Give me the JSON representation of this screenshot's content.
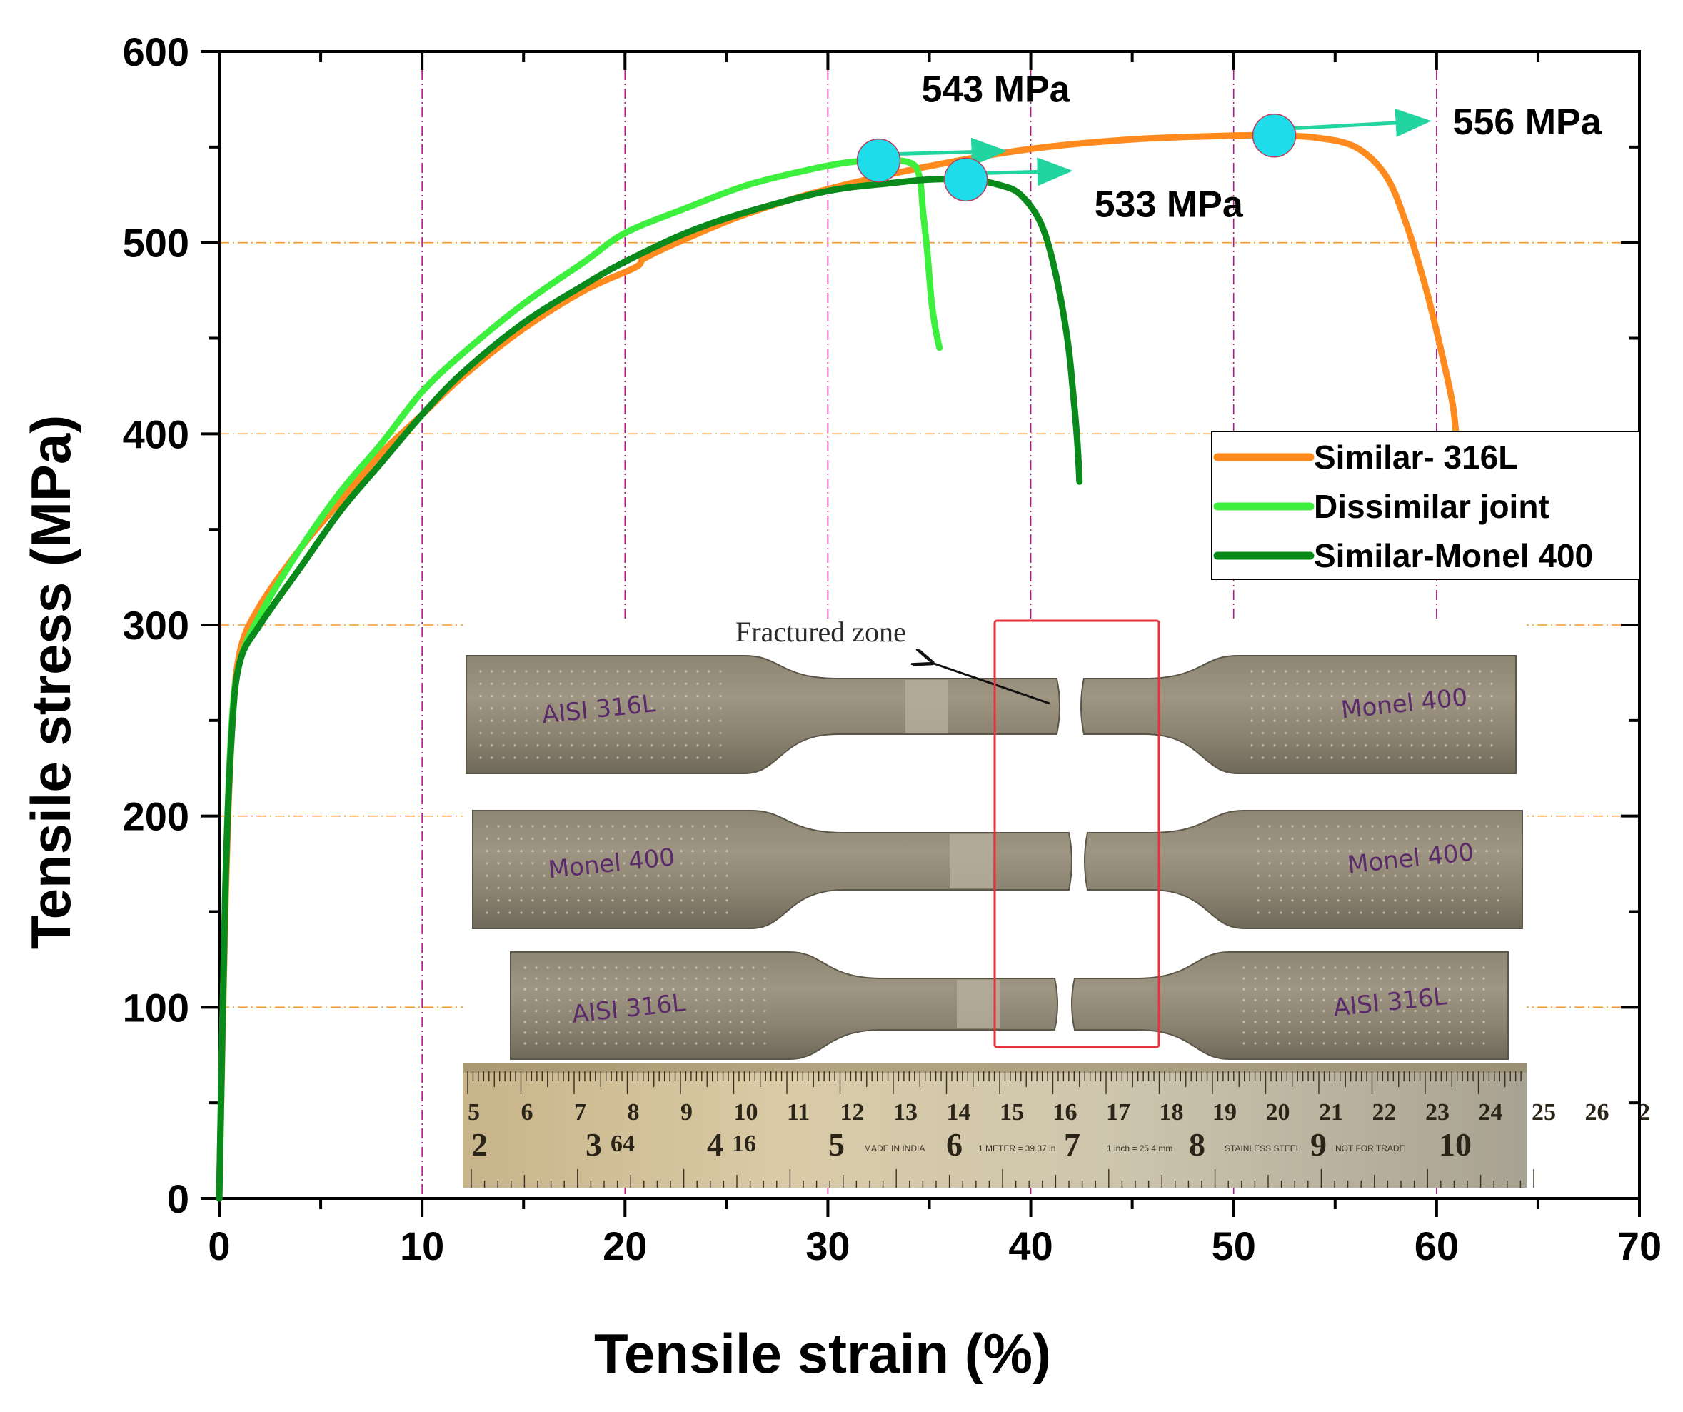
{
  "chart_data": {
    "type": "line",
    "title": "",
    "xlabel": "Tensile strain (%)",
    "ylabel": "Tensile stress (MPa)",
    "xlim": [
      0,
      70
    ],
    "ylim": [
      0,
      600
    ],
    "x_ticks": [
      0,
      10,
      20,
      30,
      40,
      50,
      60,
      70
    ],
    "y_ticks": [
      0,
      100,
      200,
      300,
      400,
      500,
      600
    ],
    "grid": "dashed vertical and horizontal lines",
    "legend_position": "right-middle",
    "series": [
      {
        "name": "Similar- 316L",
        "color": "#ff8a1e",
        "points": [
          [
            0,
            0
          ],
          [
            0.3,
            150
          ],
          [
            0.6,
            240
          ],
          [
            1,
            285
          ],
          [
            2,
            310
          ],
          [
            4,
            340
          ],
          [
            6,
            365
          ],
          [
            8,
            390
          ],
          [
            10,
            410
          ],
          [
            12,
            430
          ],
          [
            15,
            455
          ],
          [
            18,
            475
          ],
          [
            20.5,
            487
          ],
          [
            21,
            492
          ],
          [
            23,
            502
          ],
          [
            26,
            515
          ],
          [
            30,
            528
          ],
          [
            35,
            540
          ],
          [
            40,
            549
          ],
          [
            45,
            554
          ],
          [
            50,
            556
          ],
          [
            52,
            556
          ],
          [
            54,
            555
          ],
          [
            56,
            550
          ],
          [
            57.5,
            535
          ],
          [
            58.5,
            510
          ],
          [
            59.5,
            475
          ],
          [
            60.3,
            440
          ],
          [
            60.8,
            415
          ],
          [
            61,
            395
          ]
        ]
      },
      {
        "name": "Dissimilar joint",
        "color": "#3ef03e",
        "points": [
          [
            0,
            0
          ],
          [
            0.3,
            160
          ],
          [
            0.6,
            245
          ],
          [
            1,
            280
          ],
          [
            2,
            305
          ],
          [
            4,
            340
          ],
          [
            6,
            370
          ],
          [
            8,
            395
          ],
          [
            10,
            422
          ],
          [
            12,
            442
          ],
          [
            15,
            468
          ],
          [
            18,
            490
          ],
          [
            20,
            505
          ],
          [
            23,
            518
          ],
          [
            26,
            530
          ],
          [
            29,
            538
          ],
          [
            31,
            542
          ],
          [
            32.5,
            543
          ],
          [
            34,
            542
          ],
          [
            34.5,
            535
          ],
          [
            34.7,
            515
          ],
          [
            34.9,
            495
          ],
          [
            35.1,
            470
          ],
          [
            35.3,
            455
          ],
          [
            35.5,
            445
          ]
        ]
      },
      {
        "name": "Similar-Monel 400",
        "color": "#0a8a1a",
        "points": [
          [
            0,
            0
          ],
          [
            0.3,
            160
          ],
          [
            0.6,
            240
          ],
          [
            1,
            280
          ],
          [
            2,
            300
          ],
          [
            4,
            330
          ],
          [
            6,
            360
          ],
          [
            8,
            385
          ],
          [
            10,
            410
          ],
          [
            12,
            432
          ],
          [
            15,
            458
          ],
          [
            18,
            478
          ],
          [
            20,
            490
          ],
          [
            23,
            505
          ],
          [
            26,
            516
          ],
          [
            30,
            527
          ],
          [
            33,
            531
          ],
          [
            35,
            533
          ],
          [
            37,
            533
          ],
          [
            38.5,
            530
          ],
          [
            39.5,
            525
          ],
          [
            40.5,
            510
          ],
          [
            41.2,
            485
          ],
          [
            41.8,
            450
          ],
          [
            42.1,
            420
          ],
          [
            42.3,
            395
          ],
          [
            42.4,
            375
          ]
        ]
      }
    ],
    "annotations": [
      {
        "label": "543 MPa",
        "x": 32.5,
        "y": 543
      },
      {
        "label": "533 MPa",
        "x": 36.8,
        "y": 533
      },
      {
        "label": "556 MPa",
        "x": 52.0,
        "y": 556
      }
    ],
    "inset": {
      "caption": "Fractured zone",
      "specimens": [
        {
          "left_label": "AISI 316L",
          "right_label": "Monel 400"
        },
        {
          "left_label": "Monel 400",
          "right_label": "Monel 400"
        },
        {
          "left_label": "AISI 316L",
          "right_label": "AISI 316L"
        }
      ],
      "ruler": {
        "top_numbers": [
          "5",
          "6",
          "7",
          "8",
          "9",
          "10",
          "11",
          "12",
          "13",
          "14",
          "15",
          "16",
          "17",
          "18",
          "19",
          "20",
          "21",
          "22",
          "23",
          "24",
          "25",
          "26",
          "2"
        ],
        "bottom_numbers": [
          "2",
          "3",
          "64",
          "4",
          "16",
          "5",
          "MADE IN INDIA",
          "6",
          "1 METER = 39.37 in",
          "7",
          "1 inch = 25.4 mm",
          "8",
          "STAINLESS STEEL",
          "9",
          "NOT FOR TRADE",
          "10"
        ]
      }
    }
  }
}
